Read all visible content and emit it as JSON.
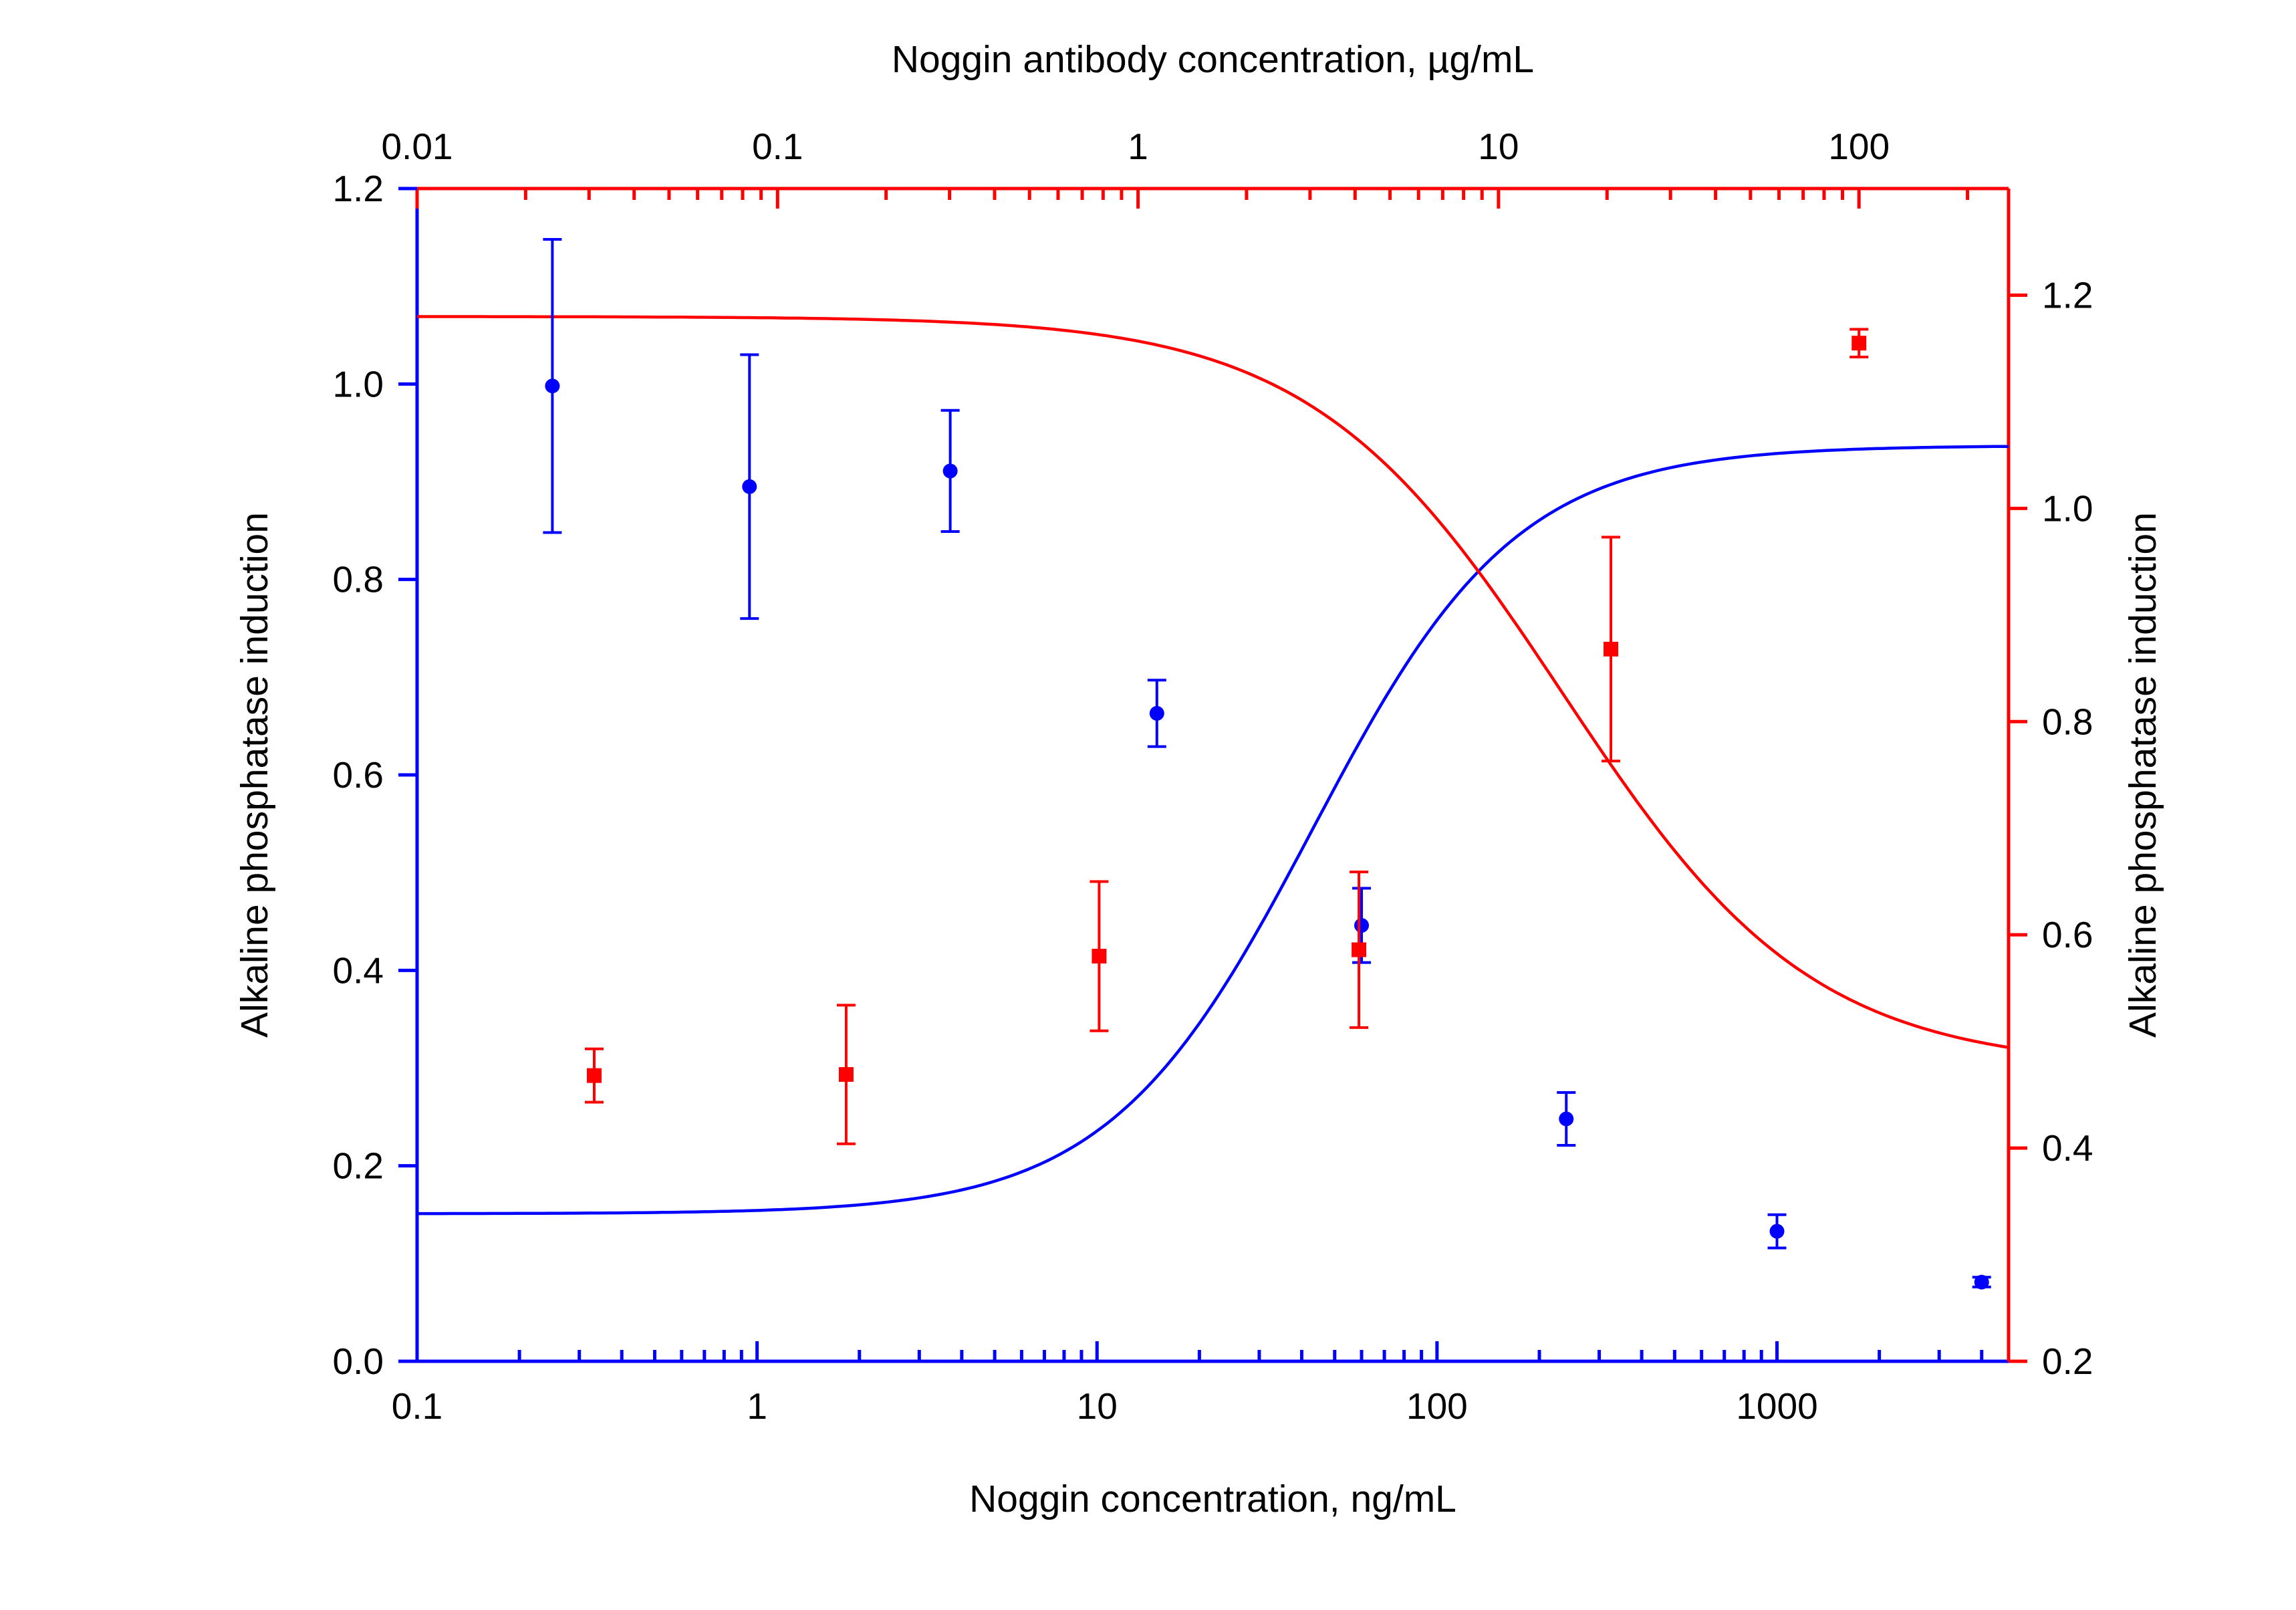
{
  "chart_data": {
    "type": "scatter",
    "title": "",
    "axes": {
      "bottom": {
        "label": "Noggin concentration, ng/mL",
        "scale": "log",
        "range": [
          0.1,
          4800
        ],
        "ticks": [
          0.1,
          1,
          10,
          100,
          1000
        ],
        "tick_labels": [
          "0.1",
          "1",
          "10",
          "100",
          "1000"
        ],
        "color": "#0000ff"
      },
      "top": {
        "label": "Noggin antibody concentration, µg/mL",
        "scale": "log",
        "range": [
          0.01,
          260
        ],
        "ticks": [
          0.01,
          0.1,
          1,
          10,
          100
        ],
        "tick_labels": [
          "0.01",
          "0.1",
          "1",
          "10",
          "100"
        ],
        "color": "#ff0000"
      },
      "left": {
        "label": "Alkaline phosphatase  induction",
        "scale": "linear",
        "range": [
          0.0,
          1.2
        ],
        "ticks": [
          0.0,
          0.2,
          0.4,
          0.6,
          0.8,
          1.0,
          1.2
        ],
        "tick_labels": [
          "0.0",
          "0.2",
          "0.4",
          "0.6",
          "0.8",
          "1.0",
          "1.2"
        ],
        "color": "#0000ff"
      },
      "right": {
        "label": "Alkaline phosphatase  induction",
        "scale": "linear",
        "range": [
          0.2,
          1.3
        ],
        "ticks": [
          0.2,
          0.4,
          0.6,
          0.8,
          1.0,
          1.2
        ],
        "tick_labels": [
          "0.2",
          "0.4",
          "0.6",
          "0.8",
          "1.0",
          "1.2"
        ],
        "color": "#ff0000"
      }
    },
    "grid": false,
    "legend": "none",
    "series": [
      {
        "x_axis": "bottom",
        "y_axis": "left",
        "color": "#0000ff",
        "marker": "circle",
        "points": [
          {
            "x": 0.25,
            "y": 0.998,
            "err": 0.15
          },
          {
            "x": 0.95,
            "y": 0.895,
            "err": 0.135
          },
          {
            "x": 3.7,
            "y": 0.911,
            "err": 0.062
          },
          {
            "x": 15,
            "y": 0.663,
            "err": 0.034
          },
          {
            "x": 60,
            "y": 0.446,
            "err": 0.038
          },
          {
            "x": 240,
            "y": 0.248,
            "err": 0.027
          },
          {
            "x": 1000,
            "y": 0.133,
            "err": 0.017
          },
          {
            "x": 4000,
            "y": 0.081,
            "err": 0.005
          }
        ],
        "fit": {
          "model": "4PL",
          "top": 0.937,
          "bottom": 0.151,
          "ec50": 43,
          "hill": -1.45
        }
      },
      {
        "x_axis": "top",
        "y_axis": "right",
        "color": "#ff0000",
        "marker": "square",
        "points": [
          {
            "x": 0.031,
            "y": 0.468,
            "err": 0.025
          },
          {
            "x": 0.155,
            "y": 0.469,
            "err": 0.065
          },
          {
            "x": 0.78,
            "y": 0.58,
            "err": 0.07
          },
          {
            "x": 4.1,
            "y": 0.586,
            "err": 0.073
          },
          {
            "x": 20.5,
            "y": 0.868,
            "err": 0.105
          },
          {
            "x": 100,
            "y": 1.155,
            "err": 0.013
          }
        ],
        "fit": {
          "model": "4PL",
          "top": 1.18,
          "bottom": 0.475,
          "ec50": 15,
          "hill": 1.25
        }
      }
    ]
  }
}
